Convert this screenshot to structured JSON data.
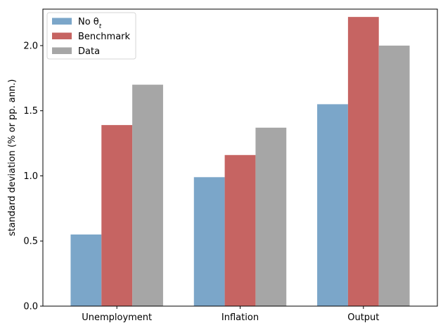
{
  "chart_data": {
    "type": "bar",
    "categories": [
      "Unemployment",
      "Inflation",
      "Output"
    ],
    "series": [
      {
        "name": "No θ",
        "name_subscript": "t",
        "color": "#7ba6c9",
        "values": [
          0.55,
          0.99,
          1.55
        ]
      },
      {
        "name": "Benchmark",
        "color": "#c66462",
        "values": [
          1.39,
          1.16,
          2.22
        ]
      },
      {
        "name": "Data",
        "color": "#a6a6a6",
        "values": [
          1.7,
          1.37,
          2.0
        ]
      }
    ],
    "title": "",
    "xlabel": "",
    "ylabel": "standard deviation (% or pp. ann.)",
    "ylim": [
      0,
      2.28
    ],
    "yticks": [
      0.0,
      0.5,
      1.0,
      1.5,
      2.0
    ],
    "ytick_labels": [
      "0.0",
      "0.5",
      "1.0",
      "1.5",
      "2.0"
    ],
    "grid": false,
    "legend_position": "top-left"
  }
}
